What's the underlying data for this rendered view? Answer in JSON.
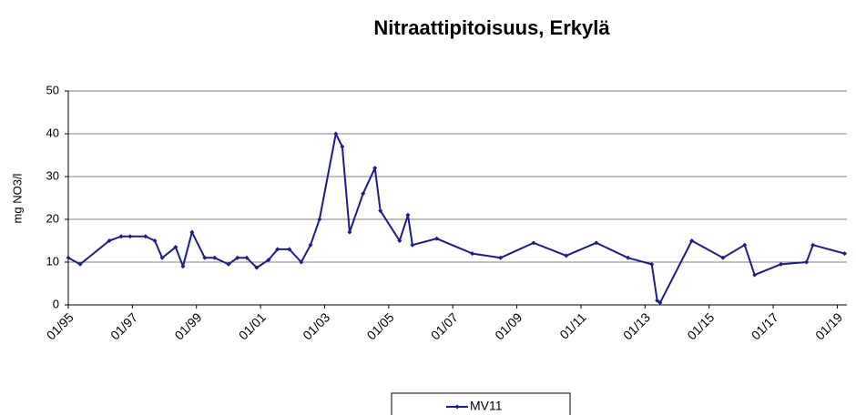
{
  "chart_data": {
    "type": "line",
    "title": "Nitraattipitoisuus, Erkylä",
    "ylabel": "mg NO3/l",
    "x": [
      1995.0,
      1995.37,
      1996.28,
      1996.65,
      1996.93,
      1997.41,
      1997.7,
      1997.93,
      1998.35,
      1998.58,
      1998.86,
      1999.26,
      1999.57,
      2000.0,
      2000.28,
      2000.57,
      2000.88,
      2001.25,
      2001.53,
      2001.9,
      2002.27,
      2002.56,
      2002.84,
      2003.35,
      2003.55,
      2003.78,
      2004.2,
      2004.57,
      2004.74,
      2005.34,
      2005.6,
      2005.74,
      2006.5,
      2007.61,
      2008.49,
      2009.52,
      2010.54,
      2011.48,
      2012.47,
      2013.21,
      2013.38,
      2013.47,
      2014.46,
      2015.43,
      2016.11,
      2016.42,
      2017.24,
      2018.04,
      2018.24,
      2019.23
    ],
    "series": [
      {
        "name": "MV11",
        "color": "#1c1c8c",
        "values": [
          11,
          9.5,
          15,
          16,
          16,
          16,
          15,
          11,
          13.5,
          9,
          17,
          11,
          11,
          9.5,
          11,
          11,
          8.7,
          10.5,
          13,
          13,
          10,
          14,
          20,
          40,
          37,
          17,
          26,
          32,
          22,
          15,
          21,
          14,
          15.5,
          12,
          11,
          14.5,
          11.5,
          14.5,
          11,
          9.5,
          1,
          0.5,
          15,
          11,
          14,
          7,
          9.5,
          10,
          14,
          12
        ]
      }
    ],
    "xlim": [
      1995,
      2019.3
    ],
    "xticks": [
      {
        "value": 1995,
        "label": "01/95"
      },
      {
        "value": 1997,
        "label": "01/97"
      },
      {
        "value": 1999,
        "label": "01/99"
      },
      {
        "value": 2001,
        "label": "01/01"
      },
      {
        "value": 2003,
        "label": "01/03"
      },
      {
        "value": 2005,
        "label": "01/05"
      },
      {
        "value": 2007,
        "label": "01/07"
      },
      {
        "value": 2009,
        "label": "01/09"
      },
      {
        "value": 2011,
        "label": "01/11"
      },
      {
        "value": 2013,
        "label": "01/13"
      },
      {
        "value": 2015,
        "label": "01/15"
      },
      {
        "value": 2017,
        "label": "01/17"
      },
      {
        "value": 2019,
        "label": "01/19"
      }
    ],
    "ylim": [
      0,
      50
    ],
    "yticks": [
      0,
      10,
      20,
      30,
      40,
      50
    ],
    "grid": true,
    "legend": "bottom"
  }
}
